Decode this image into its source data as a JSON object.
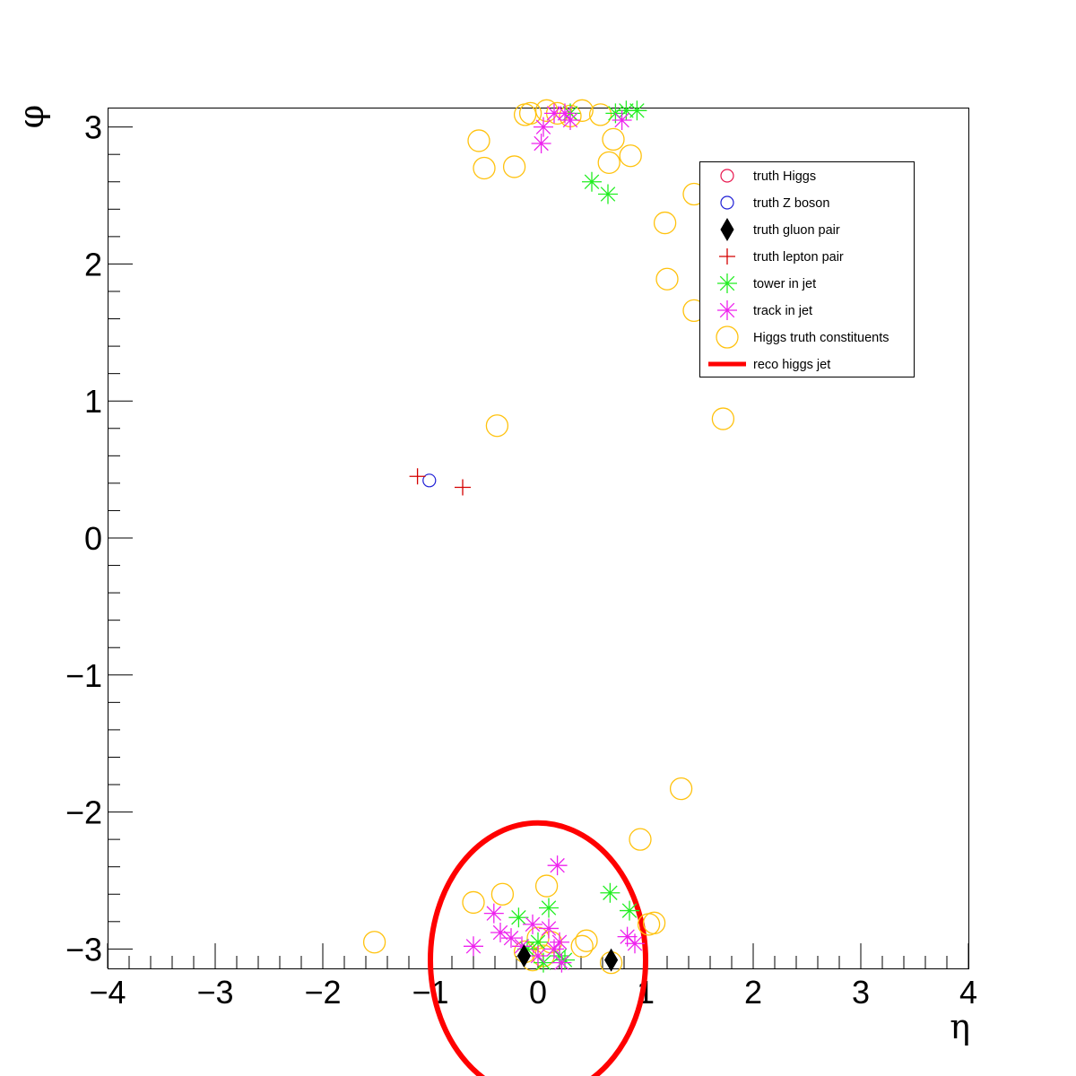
{
  "chart_data": {
    "type": "scatter",
    "title": "",
    "xlabel": "η",
    "ylabel": "φ",
    "xlim": [
      -4,
      4
    ],
    "ylim": [
      -3.1416,
      3.1416
    ],
    "x_ticks": [
      {
        "value": -4,
        "label": "−4"
      },
      {
        "value": -3,
        "label": "−3"
      },
      {
        "value": -2,
        "label": "−2"
      },
      {
        "value": -1,
        "label": "−1"
      },
      {
        "value": 0,
        "label": "0"
      },
      {
        "value": 1,
        "label": "1"
      },
      {
        "value": 2,
        "label": "2"
      },
      {
        "value": 3,
        "label": "3"
      },
      {
        "value": 4,
        "label": "4"
      }
    ],
    "y_ticks": [
      {
        "value": -3,
        "label": "−3"
      },
      {
        "value": -2,
        "label": "−2"
      },
      {
        "value": -1,
        "label": "−1"
      },
      {
        "value": 0,
        "label": "0"
      },
      {
        "value": 1,
        "label": "1"
      },
      {
        "value": 2,
        "label": "2"
      },
      {
        "value": 3,
        "label": "3"
      }
    ],
    "grid": false,
    "legend_position": "top-right",
    "series": [
      {
        "name": "truth Higgs",
        "marker": "open-circle-small",
        "color": "#e8174e",
        "points": []
      },
      {
        "name": "truth Z boson",
        "marker": "open-circle-small",
        "color": "#1f1fd6",
        "points": [
          [
            -1.01,
            0.42
          ]
        ]
      },
      {
        "name": "truth gluon pair",
        "marker": "diamond",
        "color": "#000000",
        "points": [
          [
            -0.13,
            -3.05
          ],
          [
            0.68,
            -3.08
          ]
        ]
      },
      {
        "name": "truth lepton pair",
        "marker": "plus",
        "color": "#d40000",
        "points": [
          [
            -1.12,
            0.45
          ],
          [
            -0.7,
            0.37
          ]
        ]
      },
      {
        "name": "tower in jet",
        "marker": "asterisk",
        "color": "#22ee22",
        "points": [
          [
            0.5,
            2.6
          ],
          [
            0.65,
            2.51
          ],
          [
            0.82,
            3.12
          ],
          [
            0.72,
            3.1
          ],
          [
            0.92,
            3.12
          ],
          [
            0.3,
            3.1
          ],
          [
            0.67,
            -2.59
          ],
          [
            0.85,
            -2.72
          ],
          [
            0.1,
            -2.7
          ],
          [
            -0.18,
            -2.77
          ],
          [
            0.2,
            -3.05
          ],
          [
            0.0,
            -2.95
          ],
          [
            -0.1,
            -3.0
          ],
          [
            0.25,
            -3.08
          ],
          [
            0.05,
            -3.1
          ]
        ]
      },
      {
        "name": "track in jet",
        "marker": "asterisk",
        "color": "#ee22ee",
        "points": [
          [
            0.25,
            3.1
          ],
          [
            0.3,
            3.05
          ],
          [
            0.15,
            3.1
          ],
          [
            0.05,
            3.0
          ],
          [
            0.03,
            2.88
          ],
          [
            0.78,
            3.05
          ],
          [
            0.18,
            -2.39
          ],
          [
            -0.41,
            -2.74
          ],
          [
            -0.6,
            -2.98
          ],
          [
            -0.35,
            -2.88
          ],
          [
            -0.05,
            -2.82
          ],
          [
            0.1,
            -2.85
          ],
          [
            0.2,
            -2.95
          ],
          [
            -0.25,
            -2.92
          ],
          [
            0.0,
            -3.05
          ],
          [
            0.83,
            -2.91
          ],
          [
            0.9,
            -2.96
          ],
          [
            0.15,
            -3.0
          ],
          [
            -0.15,
            -2.98
          ],
          [
            0.22,
            -3.1
          ]
        ]
      },
      {
        "name": "Higgs truth constituents",
        "marker": "open-circle-large",
        "color": "#ffc20e",
        "points": [
          [
            -0.55,
            2.9
          ],
          [
            -0.5,
            2.7
          ],
          [
            -0.22,
            2.71
          ],
          [
            -0.12,
            3.09
          ],
          [
            -0.07,
            3.1
          ],
          [
            0.08,
            3.12
          ],
          [
            0.18,
            3.1
          ],
          [
            0.3,
            3.08
          ],
          [
            0.41,
            3.12
          ],
          [
            0.58,
            3.09
          ],
          [
            0.7,
            2.91
          ],
          [
            0.66,
            2.74
          ],
          [
            0.86,
            2.79
          ],
          [
            1.45,
            2.51
          ],
          [
            1.18,
            2.3
          ],
          [
            1.2,
            1.89
          ],
          [
            1.45,
            1.66
          ],
          [
            -0.38,
            0.82
          ],
          [
            1.72,
            0.87
          ],
          [
            1.33,
            -1.83
          ],
          [
            0.95,
            -2.2
          ],
          [
            0.08,
            -2.54
          ],
          [
            -0.33,
            -2.6
          ],
          [
            -0.6,
            -2.66
          ],
          [
            -1.52,
            -2.95
          ],
          [
            -0.12,
            -3.02
          ],
          [
            0.0,
            -2.92
          ],
          [
            0.05,
            -3.05
          ],
          [
            0.12,
            -2.95
          ],
          [
            -0.05,
            -3.08
          ],
          [
            0.45,
            -2.94
          ],
          [
            0.41,
            -2.98
          ],
          [
            0.68,
            -3.1
          ],
          [
            1.03,
            -2.82
          ],
          [
            1.08,
            -2.81
          ]
        ]
      }
    ],
    "reco_jet": {
      "name": "reco higgs jet",
      "color": "#ff0000",
      "center": [
        0.0,
        -3.08
      ],
      "radius": 1.0
    }
  }
}
